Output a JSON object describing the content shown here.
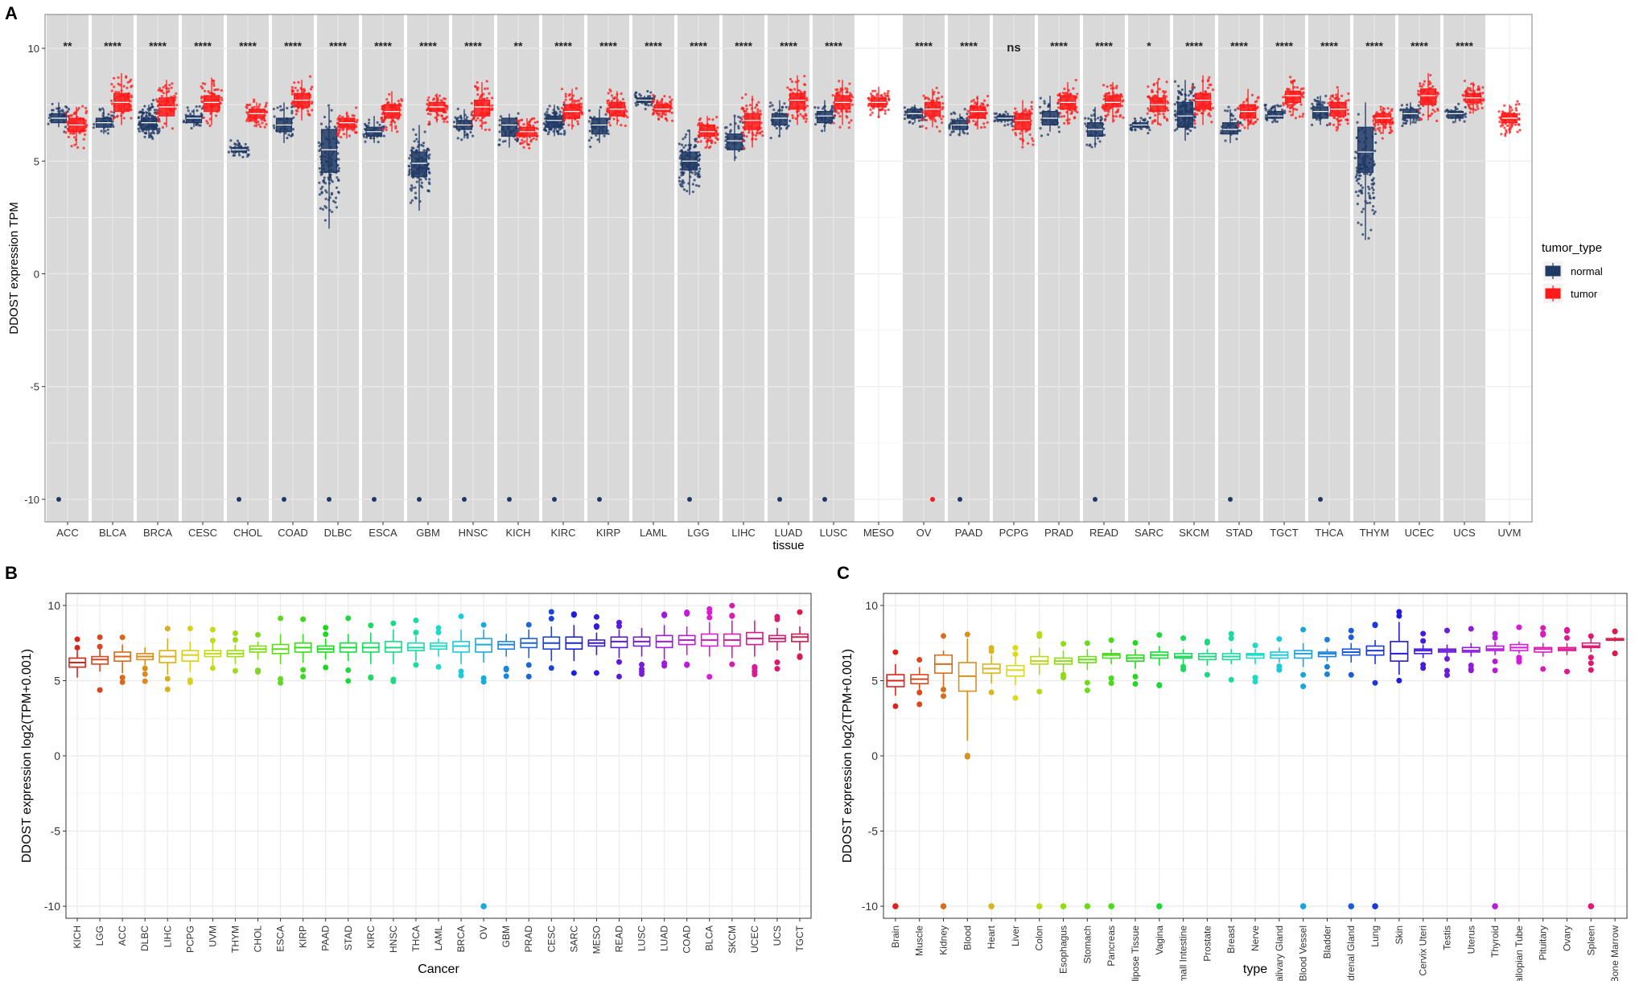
{
  "figure": {
    "panel_labels": [
      "A",
      "B",
      "C"
    ],
    "colors": {
      "normal": "#1f3864",
      "tumor": "#ff1a1a",
      "panel_bg": "#d9d9d9",
      "grid": "#ebebeb"
    }
  },
  "chart_data": [
    {
      "id": "A",
      "type": "box",
      "title": "",
      "xlabel": "tissue",
      "ylabel": "DDOST expression TPM",
      "ylim": [
        -11,
        11.5
      ],
      "yticks": [
        -10,
        -5,
        0,
        5,
        10
      ],
      "legend": {
        "title": "tumor_type",
        "entries": [
          "normal",
          "tumor"
        ],
        "position": "right"
      },
      "categories": [
        "ACC",
        "BLCA",
        "BRCA",
        "CESC",
        "CHOL",
        "COAD",
        "DLBC",
        "ESCA",
        "GBM",
        "HNSC",
        "KICH",
        "KIRC",
        "KIRP",
        "LAML",
        "LGG",
        "LIHC",
        "LUAD",
        "LUSC",
        "MESO",
        "OV",
        "PAAD",
        "PCPG",
        "PRAD",
        "READ",
        "SARC",
        "SKCM",
        "STAD",
        "TGCT",
        "THCA",
        "THYM",
        "UCEC",
        "UCS",
        "UVM"
      ],
      "significance": [
        "**",
        "****",
        "****",
        "****",
        "****",
        "****",
        "****",
        "****",
        "****",
        "****",
        "**",
        "****",
        "****",
        "****",
        "****",
        "****",
        "****",
        "****",
        "",
        "****",
        "****",
        "ns",
        "****",
        "****",
        "*",
        "****",
        "****",
        "****",
        "****",
        "****",
        "****",
        "****",
        ""
      ],
      "series": [
        {
          "name": "normal",
          "boxes": [
            [
              6.5,
              6.7,
              6.9,
              7.1,
              7.6
            ],
            [
              6.2,
              6.5,
              6.7,
              6.9,
              7.3
            ],
            [
              6.0,
              6.4,
              6.7,
              6.9,
              7.5
            ],
            [
              6.5,
              6.7,
              6.9,
              7.0,
              7.3
            ],
            [
              5.3,
              5.4,
              5.5,
              5.6,
              5.7
            ],
            [
              5.8,
              6.3,
              6.6,
              6.9,
              7.6
            ],
            [
              2.0,
              4.5,
              5.5,
              6.4,
              7.4
            ],
            [
              5.8,
              6.1,
              6.3,
              6.5,
              7.0
            ],
            [
              2.8,
              4.3,
              4.9,
              5.4,
              6.6
            ],
            [
              6.0,
              6.4,
              6.6,
              6.8,
              7.3
            ],
            [
              5.6,
              6.1,
              6.6,
              6.9,
              7.1
            ],
            [
              6.1,
              6.5,
              6.8,
              7.0,
              7.5
            ],
            [
              5.8,
              6.2,
              6.6,
              6.9,
              7.3
            ],
            [
              7.5,
              7.6,
              7.7,
              7.8,
              7.9
            ],
            [
              3.5,
              4.6,
              5.0,
              5.4,
              6.4
            ],
            [
              5.0,
              5.5,
              5.9,
              6.2,
              7.0
            ],
            [
              6.1,
              6.6,
              6.9,
              7.1,
              7.7
            ],
            [
              6.3,
              6.7,
              7.0,
              7.2,
              7.7
            ],
            null,
            [
              6.7,
              6.9,
              7.1,
              7.3,
              7.5
            ],
            [
              6.1,
              6.4,
              6.6,
              6.8,
              7.1
            ],
            [
              6.7,
              6.8,
              6.9,
              7.0,
              7.1
            ],
            [
              6.3,
              6.6,
              6.9,
              7.2,
              7.9
            ],
            [
              5.6,
              6.1,
              6.4,
              6.7,
              7.4
            ],
            [
              6.4,
              6.5,
              6.6,
              6.7,
              6.8
            ],
            [
              5.9,
              6.5,
              7.0,
              7.6,
              8.6
            ],
            [
              5.8,
              6.2,
              6.4,
              6.7,
              7.3
            ],
            [
              6.7,
              6.9,
              7.0,
              7.2,
              7.5
            ],
            [
              6.6,
              6.9,
              7.2,
              7.4,
              7.9
            ],
            [
              1.5,
              4.5,
              5.4,
              6.5,
              7.6
            ],
            [
              6.6,
              6.9,
              7.1,
              7.3,
              7.6
            ],
            [
              6.7,
              6.9,
              7.1,
              7.2,
              7.4
            ],
            null
          ]
        },
        {
          "name": "tumor",
          "boxes": [
            [
              5.7,
              6.3,
              6.6,
              6.9,
              7.4
            ],
            [
              6.6,
              7.2,
              7.6,
              8.0,
              8.9
            ],
            [
              6.5,
              7.0,
              7.4,
              7.8,
              8.6
            ],
            [
              6.6,
              7.2,
              7.6,
              7.9,
              8.7
            ],
            [
              6.5,
              6.9,
              7.1,
              7.3,
              7.6
            ],
            [
              6.8,
              7.4,
              7.7,
              8.0,
              8.6
            ],
            [
              6.0,
              6.5,
              6.7,
              6.9,
              7.2
            ],
            [
              6.3,
              6.9,
              7.2,
              7.5,
              8.1
            ],
            [
              6.7,
              7.2,
              7.4,
              7.6,
              8.0
            ],
            [
              6.4,
              7.0,
              7.4,
              7.7,
              8.5
            ],
            [
              5.7,
              6.1,
              6.3,
              6.5,
              6.9
            ],
            [
              6.4,
              6.9,
              7.2,
              7.5,
              8.2
            ],
            [
              6.6,
              7.0,
              7.3,
              7.6,
              8.1
            ],
            [
              6.9,
              7.2,
              7.3,
              7.5,
              7.8
            ],
            [
              5.6,
              6.1,
              6.3,
              6.6,
              7.0
            ],
            [
              5.6,
              6.4,
              6.8,
              7.1,
              7.9
            ],
            [
              6.6,
              7.3,
              7.7,
              8.0,
              8.8
            ],
            [
              6.6,
              7.3,
              7.6,
              7.9,
              8.6
            ],
            [
              6.9,
              7.4,
              7.6,
              7.8,
              8.3
            ],
            [
              6.5,
              7.0,
              7.3,
              7.6,
              8.2
            ],
            [
              6.4,
              6.9,
              7.2,
              7.4,
              7.9
            ],
            [
              5.7,
              6.4,
              6.8,
              7.1,
              7.7
            ],
            [
              6.6,
              7.3,
              7.6,
              7.9,
              8.5
            ],
            [
              6.7,
              7.4,
              7.6,
              7.9,
              8.5
            ],
            [
              6.6,
              7.2,
              7.5,
              7.8,
              8.6
            ],
            [
              6.6,
              7.3,
              7.7,
              8.0,
              8.8
            ],
            [
              6.4,
              6.9,
              7.2,
              7.5,
              8.2
            ],
            [
              7.0,
              7.6,
              7.9,
              8.1,
              8.6
            ],
            [
              6.4,
              7.0,
              7.3,
              7.6,
              8.2
            ],
            [
              6.2,
              6.7,
              6.9,
              7.1,
              7.4
            ],
            [
              6.8,
              7.5,
              7.9,
              8.2,
              8.9
            ],
            [
              7.1,
              7.6,
              7.8,
              8.0,
              8.5
            ],
            [
              6.2,
              6.7,
              6.9,
              7.1,
              7.5
            ]
          ]
        }
      ]
    },
    {
      "id": "B",
      "type": "box",
      "xlabel": "Cancer",
      "ylabel": "DDOST expression log2(TPM+0.001)",
      "ylim": [
        -10.8,
        10.8
      ],
      "yticks": [
        -10,
        -5,
        0,
        5,
        10
      ],
      "categories": [
        "KICH",
        "LGG",
        "ACC",
        "DLBC",
        "LIHC",
        "PCPG",
        "UVM",
        "THYM",
        "CHOL",
        "ESCA",
        "KIRP",
        "PAAD",
        "STAD",
        "KIRC",
        "HNSC",
        "THCA",
        "LAML",
        "BRCA",
        "OV",
        "GBM",
        "PRAD",
        "CESC",
        "SARC",
        "MESO",
        "READ",
        "LUSC",
        "LUAD",
        "COAD",
        "BLCA",
        "SKCM",
        "UCEC",
        "UCS",
        "TGCT"
      ],
      "boxes": [
        [
          5.2,
          5.9,
          6.2,
          6.5,
          7.0
        ],
        [
          5.6,
          6.1,
          6.4,
          6.6,
          7.1
        ],
        [
          5.5,
          6.3,
          6.6,
          6.9,
          7.4
        ],
        [
          6.0,
          6.4,
          6.6,
          6.8,
          7.2
        ],
        [
          5.4,
          6.2,
          6.6,
          7.0,
          7.8
        ],
        [
          5.6,
          6.3,
          6.7,
          7.0,
          7.6
        ],
        [
          6.0,
          6.6,
          6.8,
          7.0,
          7.5
        ],
        [
          6.1,
          6.6,
          6.8,
          7.0,
          7.4
        ],
        [
          6.4,
          6.9,
          7.1,
          7.3,
          7.6
        ],
        [
          6.1,
          6.8,
          7.1,
          7.4,
          8.1
        ],
        [
          6.2,
          6.9,
          7.2,
          7.5,
          8.1
        ],
        [
          6.4,
          6.9,
          7.1,
          7.3,
          7.8
        ],
        [
          6.3,
          6.9,
          7.2,
          7.5,
          8.1
        ],
        [
          6.1,
          6.9,
          7.2,
          7.5,
          8.2
        ],
        [
          6.1,
          6.9,
          7.2,
          7.6,
          8.4
        ],
        [
          6.3,
          7.0,
          7.2,
          7.5,
          8.0
        ],
        [
          6.6,
          7.1,
          7.3,
          7.5,
          7.8
        ],
        [
          6.1,
          6.9,
          7.3,
          7.6,
          8.4
        ],
        [
          6.2,
          6.9,
          7.4,
          7.8,
          8.4
        ],
        [
          6.6,
          7.1,
          7.4,
          7.6,
          8.1
        ],
        [
          6.5,
          7.2,
          7.5,
          7.8,
          8.4
        ],
        [
          6.3,
          7.1,
          7.5,
          7.9,
          8.6
        ],
        [
          6.3,
          7.1,
          7.5,
          7.9,
          8.7
        ],
        [
          6.7,
          7.3,
          7.5,
          7.7,
          8.2
        ],
        [
          6.5,
          7.2,
          7.6,
          7.9,
          8.4
        ],
        [
          6.6,
          7.3,
          7.6,
          7.9,
          8.5
        ],
        [
          6.4,
          7.2,
          7.6,
          8.0,
          8.7
        ],
        [
          6.7,
          7.4,
          7.7,
          8.0,
          8.6
        ],
        [
          6.6,
          7.3,
          7.7,
          8.1,
          8.9
        ],
        [
          6.5,
          7.3,
          7.7,
          8.1,
          9.0
        ],
        [
          6.6,
          7.4,
          7.8,
          8.2,
          9.0
        ],
        [
          7.0,
          7.6,
          7.8,
          8.0,
          8.5
        ],
        [
          7.0,
          7.6,
          7.9,
          8.1,
          8.6
        ]
      ]
    },
    {
      "id": "C",
      "type": "box",
      "xlabel": "type",
      "ylabel": "DDOST expression log2(TPM+0.001)",
      "ylim": [
        -10.8,
        10.8
      ],
      "yticks": [
        -10,
        -5,
        0,
        5,
        10
      ],
      "categories": [
        "Brain",
        "Muscle",
        "Kidney",
        "Blood",
        "Heart",
        "Liver",
        "Colon",
        "Esophagus",
        "Stomach",
        "Pancreas",
        "Adipose Tissue",
        "Vagina",
        "Small Intestine",
        "Prostate",
        "Breast",
        "Nerve",
        "Salivary Gland",
        "Blood Vessel",
        "Bladder",
        "Adrenal Gland",
        "Lung",
        "Skin",
        "Cervix Uteri",
        "Testis",
        "Uterus",
        "Thyroid",
        "Fallopian Tube",
        "Pituitary",
        "Ovary",
        "Spleen",
        "Bone Marrow"
      ],
      "boxes": [
        [
          4.0,
          4.6,
          5.0,
          5.4,
          6.1
        ],
        [
          4.4,
          4.8,
          5.1,
          5.4,
          5.9
        ],
        [
          4.6,
          5.5,
          6.1,
          6.7,
          7.0
        ],
        [
          1.0,
          4.3,
          5.3,
          6.2,
          7.8
        ],
        [
          4.8,
          5.5,
          5.8,
          6.1,
          6.7
        ],
        [
          4.7,
          5.3,
          5.7,
          6.0,
          6.6
        ],
        [
          5.4,
          6.1,
          6.3,
          6.6,
          7.2
        ],
        [
          5.6,
          6.1,
          6.3,
          6.5,
          7.0
        ],
        [
          5.7,
          6.2,
          6.4,
          6.6,
          7.1
        ],
        [
          6.1,
          6.5,
          6.7,
          6.8,
          7.1
        ],
        [
          5.8,
          6.3,
          6.5,
          6.7,
          7.1
        ],
        [
          6.0,
          6.5,
          6.7,
          6.9,
          7.3
        ],
        [
          6.1,
          6.5,
          6.6,
          6.8,
          7.1
        ],
        [
          6.0,
          6.4,
          6.6,
          6.8,
          7.1
        ],
        [
          6.1,
          6.4,
          6.6,
          6.8,
          7.1
        ],
        [
          6.1,
          6.5,
          6.7,
          6.8,
          7.1
        ],
        [
          6.2,
          6.5,
          6.7,
          6.9,
          7.2
        ],
        [
          5.9,
          6.5,
          6.8,
          7.0,
          7.5
        ],
        [
          6.3,
          6.6,
          6.8,
          6.9,
          7.1
        ],
        [
          6.2,
          6.7,
          6.9,
          7.1,
          7.5
        ],
        [
          6.1,
          6.7,
          7.0,
          7.3,
          7.7
        ],
        [
          5.4,
          6.3,
          6.8,
          7.6,
          8.9
        ],
        [
          6.5,
          6.8,
          7.0,
          7.1,
          7.4
        ],
        [
          6.6,
          6.9,
          7.0,
          7.1,
          7.4
        ],
        [
          6.6,
          6.9,
          7.0,
          7.2,
          7.5
        ],
        [
          6.7,
          7.0,
          7.1,
          7.3,
          7.6
        ],
        [
          6.8,
          7.0,
          7.2,
          7.4,
          7.6
        ],
        [
          6.6,
          6.9,
          7.1,
          7.2,
          7.5
        ],
        [
          6.7,
          7.0,
          7.1,
          7.2,
          7.5
        ],
        [
          6.9,
          7.2,
          7.3,
          7.5,
          7.8
        ],
        [
          7.6,
          7.7,
          7.7,
          7.8,
          7.9
        ]
      ],
      "low_outliers": [
        "Brain",
        "Kidney",
        "Heart",
        "Colon",
        "Esophagus",
        "Stomach",
        "Pancreas",
        "Vagina",
        "Blood Vessel",
        "Adrenal Gland",
        "Lung",
        "Thyroid",
        "Spleen"
      ]
    }
  ]
}
